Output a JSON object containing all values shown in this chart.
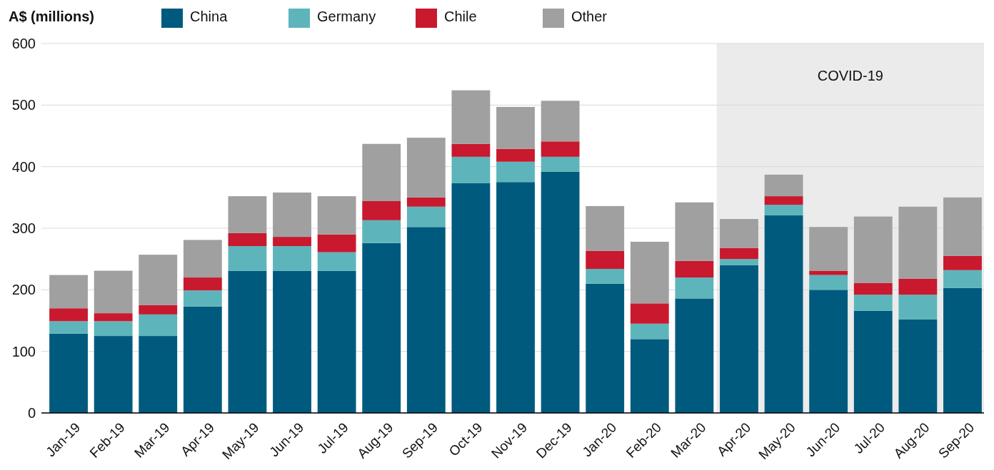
{
  "chart_data": {
    "type": "bar",
    "stacked": true,
    "ylabel": "A$ (millions)",
    "legend": "top",
    "grid": "y",
    "categories": [
      "Jan-19",
      "Feb-19",
      "Mar-19",
      "Apr-19",
      "May-19",
      "Jun-19",
      "Jul-19",
      "Aug-19",
      "Sep-19",
      "Oct-19",
      "Nov-19",
      "Dec-19",
      "Jan-20",
      "Feb-20",
      "Mar-20",
      "Apr-20",
      "May-20",
      "Jun-20",
      "Jul-20",
      "Aug-20",
      "Sep-20"
    ],
    "ylim": [
      0,
      600
    ],
    "yticks": [
      0,
      100,
      200,
      300,
      400,
      500,
      600
    ],
    "bands": [
      {
        "axis": "x",
        "from": "Apr-20",
        "to": "Sep-20",
        "label": "COVID-19",
        "color": "#ebebeb"
      }
    ],
    "series": [
      {
        "name": "China",
        "color": "#005a7e",
        "values": [
          129,
          125,
          125,
          173,
          231,
          231,
          231,
          276,
          302,
          373,
          375,
          392,
          210,
          120,
          186,
          240,
          321,
          200,
          166,
          152,
          203
        ]
      },
      {
        "name": "Germany",
        "color": "#5db5bb",
        "values": [
          20,
          24,
          35,
          26,
          40,
          40,
          30,
          37,
          33,
          43,
          33,
          24,
          24,
          25,
          34,
          10,
          17,
          24,
          26,
          40,
          29
        ]
      },
      {
        "name": "Chile",
        "color": "#c8192e",
        "values": [
          21,
          13,
          15,
          21,
          21,
          15,
          29,
          31,
          15,
          21,
          21,
          25,
          29,
          33,
          27,
          18,
          14,
          7,
          19,
          26,
          23
        ]
      },
      {
        "name": "Other",
        "color": "#a0a0a0",
        "values": [
          54,
          69,
          82,
          61,
          60,
          72,
          62,
          93,
          97,
          87,
          68,
          66,
          73,
          100,
          95,
          47,
          35,
          71,
          108,
          117,
          95
        ]
      }
    ]
  }
}
